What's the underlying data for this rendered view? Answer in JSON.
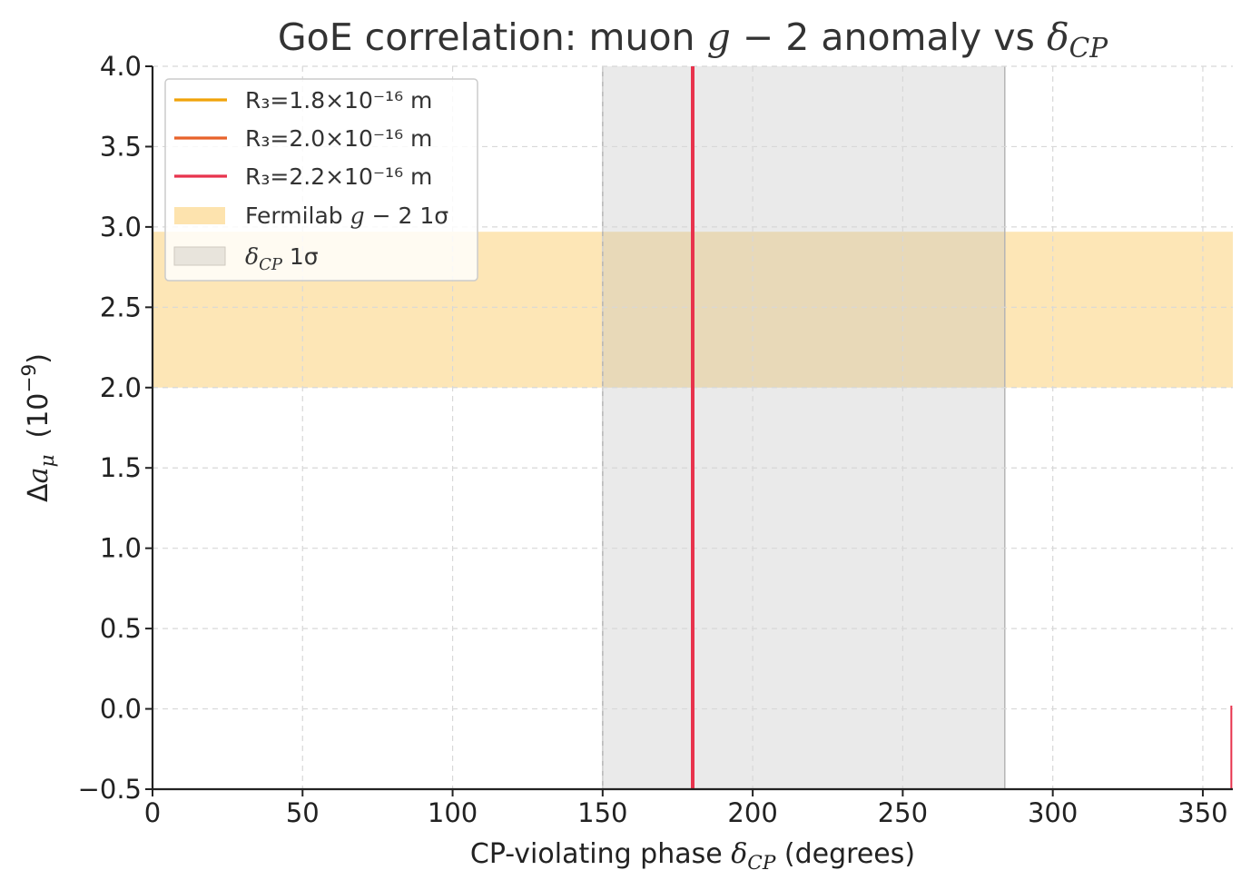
{
  "chart_data": {
    "type": "line",
    "title_prefix": "GoE correlation: muon ",
    "title_g": "g",
    "title_mid": " − 2 anomaly vs ",
    "title_delta": "δ",
    "title_sub": "CP",
    "xlabel_prefix": "CP-violating phase ",
    "xlabel_delta": "δ",
    "xlabel_sub": "CP",
    "xlabel_suffix": " (degrees)",
    "ylabel_delta": "Δ",
    "ylabel_a": "a",
    "ylabel_sub": "μ",
    "ylabel_units_base": "(10",
    "ylabel_units_exp": "−9",
    "ylabel_units_close": ")",
    "xlim": [
      0,
      360
    ],
    "ylim": [
      -0.5,
      4.0
    ],
    "xticks": [
      0,
      50,
      100,
      150,
      200,
      250,
      300,
      350
    ],
    "xtick_labels": [
      "0",
      "50",
      "100",
      "150",
      "200",
      "250",
      "300",
      "350"
    ],
    "yticks": [
      -0.5,
      0.0,
      0.5,
      1.0,
      1.5,
      2.0,
      2.5,
      3.0,
      3.5,
      4.0
    ],
    "ytick_labels": [
      "−0.5",
      "0.0",
      "0.5",
      "1.0",
      "1.5",
      "2.0",
      "2.5",
      "3.0",
      "3.5",
      "4.0"
    ],
    "grid": true,
    "legend_position": "top-left",
    "series": [
      {
        "name": "R₃=1.8×10⁻¹⁶ m",
        "color": "#f0a30a",
        "points": [
          [
            0,
            -0.5
          ],
          [
            0,
            -0.5
          ]
        ]
      },
      {
        "name": "R₃=2.0×10⁻¹⁶ m",
        "color": "#e8622a",
        "points": [
          [
            0,
            -0.5
          ],
          [
            0,
            -0.5
          ]
        ]
      },
      {
        "name": "R₃=2.2×10⁻¹⁶ m",
        "color": "#e8334d",
        "points": [
          [
            180,
            -0.5
          ],
          [
            180,
            4.0
          ]
        ]
      }
    ],
    "edge_mark": {
      "color": "#e8334d",
      "x": 359.5,
      "y_range": [
        -0.5,
        0.02
      ]
    },
    "bands": [
      {
        "name_prefix": "Fermilab ",
        "name_g": "g",
        "name_suffix": " − 2 1σ",
        "orientation": "horizontal",
        "range": [
          2.0,
          2.97
        ],
        "color": "#fde3ae"
      },
      {
        "name_delta": "δ",
        "name_sub": "CP",
        "name_suffix": " 1σ",
        "orientation": "vertical",
        "range": [
          150,
          284
        ],
        "color": "#bdbdbd"
      }
    ]
  }
}
